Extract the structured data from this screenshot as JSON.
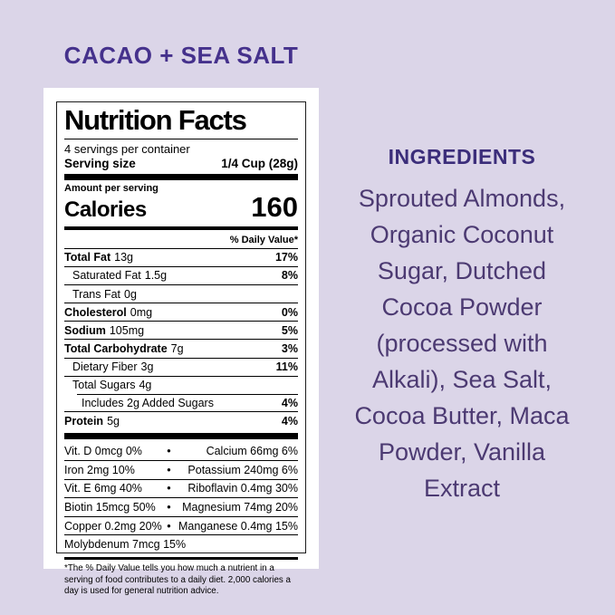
{
  "page": {
    "background_color": "#dbd5e8",
    "card_color": "#ffffff",
    "title_color": "#45318c",
    "ingredients_heading_color": "#3b2d7a",
    "ingredients_body_color": "#4c3a72"
  },
  "header": {
    "flavor_title": "CACAO + SEA SALT"
  },
  "label": {
    "title": "Nutrition Facts",
    "servings_per_container": "4 servings per container",
    "serving_size_label": "Serving size",
    "serving_size_value": "1/4 Cup (28g)",
    "amount_per_serving": "Amount per serving",
    "calories_label": "Calories",
    "calories_value": "160",
    "daily_value_header": "% Daily Value*",
    "nutrients": [
      {
        "name": "Total Fat",
        "amount": "13g",
        "dv": "17%"
      },
      {
        "name": "Saturated Fat",
        "amount": "1.5g",
        "dv": "8%"
      },
      {
        "name": "Trans Fat",
        "amount": "0g",
        "dv": ""
      },
      {
        "name": "Cholesterol",
        "amount": "0mg",
        "dv": "0%"
      },
      {
        "name": "Sodium",
        "amount": "105mg",
        "dv": "5%"
      },
      {
        "name": "Total Carbohydrate",
        "amount": "7g",
        "dv": "3%"
      },
      {
        "name": "Dietary Fiber",
        "amount": "3g",
        "dv": "11%"
      },
      {
        "name": "Total Sugars",
        "amount": "4g",
        "dv": ""
      },
      {
        "name": "Includes 2g Added Sugars",
        "amount": "",
        "dv": "4%"
      },
      {
        "name": "Protein",
        "amount": "5g",
        "dv": "4%"
      }
    ],
    "vitamins": [
      {
        "left": "Vit. D 0mcg 0%",
        "sep": "•",
        "right": "Calcium 66mg 6%"
      },
      {
        "left": "Iron 2mg 10%",
        "sep": "•",
        "right": "Potassium 240mg 6%"
      },
      {
        "left": "Vit. E 6mg 40%",
        "sep": "•",
        "right": "Riboflavin 0.4mg 30%"
      },
      {
        "left": "Biotin 15mcg 50%",
        "sep": "•",
        "right": "Magnesium 74mg 20%"
      },
      {
        "left": "Copper 0.2mg 20%",
        "sep": "•",
        "right": "Manganese 0.4mg 15%"
      },
      {
        "left": "Molybdenum 7mcg 15%",
        "sep": "",
        "right": ""
      }
    ],
    "footnote": "*The % Daily Value tells you how much a nutrient in a serving of food contributes to a daily diet. 2,000 calories a day is used for general nutrition advice."
  },
  "ingredients": {
    "heading": "INGREDIENTS",
    "text": "Sprouted Almonds,\nOrganic Coconut\nSugar, Dutched\nCocoa Powder\n(processed with\nAlkali), Sea Salt,\nCocoa Butter, Maca\nPowder, Vanilla\nExtract"
  }
}
